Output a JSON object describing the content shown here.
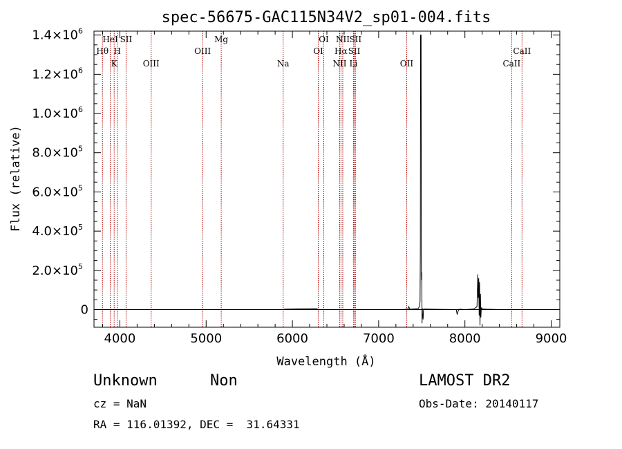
{
  "chart_data": {
    "type": "line",
    "title": "spec-56675-GAC115N34V2_sp01-004.fits",
    "xlabel": "Wavelength (Å)",
    "ylabel": "Flux (relative)",
    "xlim": [
      3700,
      9100
    ],
    "ylim": [
      -90000,
      1420000
    ],
    "x_ticks": [
      4000,
      5000,
      6000,
      7000,
      8000,
      9000
    ],
    "y_ticks": [
      {
        "value": 0,
        "mantissa": "0",
        "exponent": ""
      },
      {
        "value": 200000,
        "mantissa": "2.0×10",
        "exponent": "5"
      },
      {
        "value": 400000,
        "mantissa": "4.0×10",
        "exponent": "5"
      },
      {
        "value": 600000,
        "mantissa": "6.0×10",
        "exponent": "5"
      },
      {
        "value": 800000,
        "mantissa": "8.0×10",
        "exponent": "5"
      },
      {
        "value": 1000000,
        "mantissa": "1.0×10",
        "exponent": "6"
      },
      {
        "value": 1200000,
        "mantissa": "1.2×10",
        "exponent": "6"
      },
      {
        "value": 1400000,
        "mantissa": "1.4×10",
        "exponent": "6"
      }
    ],
    "zero_line": 0,
    "spectrum": {
      "x": [
        3700,
        5900,
        5910,
        6000,
        6100,
        6200,
        6280,
        6300,
        7000,
        7300,
        7340,
        7350,
        7360,
        7400,
        7440,
        7450,
        7460,
        7470,
        7480,
        7483,
        7486,
        7489,
        7492,
        7495,
        7498,
        7500,
        7503,
        7506,
        7510,
        7515,
        7520,
        7530,
        7600,
        7900,
        7910,
        7920,
        7930,
        7940,
        8000,
        8100,
        8120,
        8140,
        8150,
        8155,
        8160,
        8165,
        8170,
        8175,
        8180,
        8185,
        8190,
        8195,
        8200,
        8210,
        8250,
        8400,
        9050
      ],
      "y": [
        0,
        0,
        2000,
        3000,
        4000,
        4500,
        5000,
        0,
        0,
        1000,
        3000,
        15000,
        2000,
        3000,
        5000,
        2000,
        6000,
        15000,
        40000,
        300000,
        1400000,
        1400000,
        1400000,
        200000,
        150000,
        190000,
        -70000,
        8000,
        -30000,
        -50000,
        2000,
        3000,
        2000,
        0,
        -25000,
        -10000,
        0,
        2000,
        0,
        3000,
        8000,
        15000,
        180000,
        60000,
        160000,
        -30000,
        140000,
        -80000,
        80000,
        -40000,
        5000,
        10000,
        0,
        3000,
        2000,
        0,
        0
      ]
    },
    "emission_lines": [
      {
        "label": "Hθ",
        "wavelength": 3798,
        "row": 2
      },
      {
        "label": "K",
        "wavelength": 3934,
        "row": 3
      },
      {
        "label": "HeI",
        "wavelength": 3889,
        "row": 1
      },
      {
        "label": "SII",
        "wavelength": 4072,
        "row": 1
      },
      {
        "label": "H",
        "wavelength": 3969,
        "row": 2
      },
      {
        "label": "OIII",
        "wavelength": 4363,
        "row": 3
      },
      {
        "label": "OIII",
        "wavelength": 4959,
        "row": 2
      },
      {
        "label": "Mg",
        "wavelength": 5175,
        "row": 1
      },
      {
        "label": "Na",
        "wavelength": 5893,
        "row": 3
      },
      {
        "label": "OI",
        "wavelength": 6300,
        "row": 2
      },
      {
        "label": "OI",
        "wavelength": 6364,
        "row": 1
      },
      {
        "label": "NII",
        "wavelength": 6548,
        "row": 3
      },
      {
        "label": "NII",
        "wavelength": 6584,
        "row": 1
      },
      {
        "label": "Hα",
        "wavelength": 6563,
        "row": 2
      },
      {
        "label": "SII",
        "wavelength": 6717,
        "row": 2
      },
      {
        "label": "SII",
        "wavelength": 6731,
        "row": 1
      },
      {
        "label": "Li",
        "wavelength": 6708,
        "row": 3
      },
      {
        "label": "OII",
        "wavelength": 7325,
        "row": 3
      },
      {
        "label": "CaII",
        "wavelength": 8542,
        "row": 3
      },
      {
        "label": "CaII",
        "wavelength": 8662,
        "row": 2
      }
    ],
    "colors": {
      "spectrum": "#000000",
      "lines": "#b00000",
      "axes": "#000000"
    }
  },
  "info": {
    "object_class": "Unknown",
    "subclass": "Non",
    "redshift": "cz = NaN",
    "coords": "RA = 116.01392, DEC =  31.64331",
    "survey": "LAMOST DR2",
    "obs_date": "Obs-Date: 20140117"
  }
}
